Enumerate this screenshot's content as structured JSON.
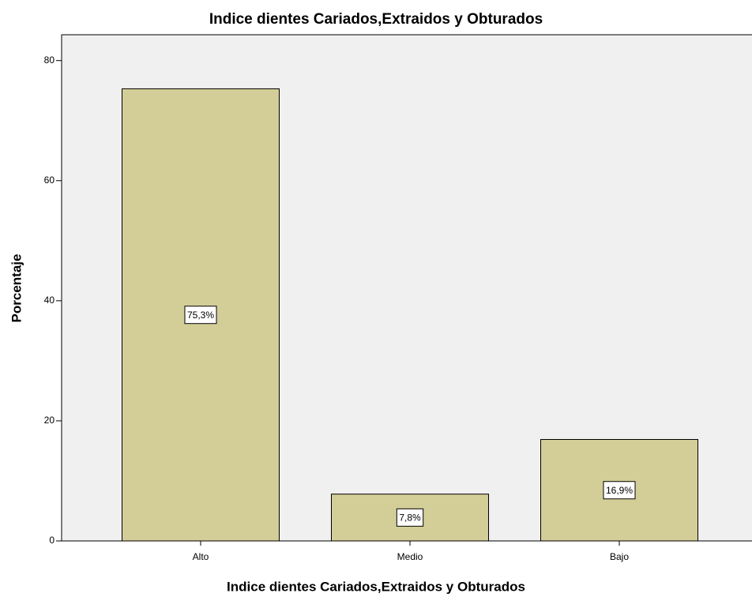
{
  "chart_data": {
    "type": "bar",
    "title": "Indice dientes Cariados,Extraidos y Obturados",
    "x_label": "Indice dientes Cariados,Extraidos y Obturados",
    "y_label": "Porcentaje",
    "categories": [
      "Alto",
      "Medio",
      "Bajo"
    ],
    "values": [
      75.3,
      7.8,
      16.9
    ],
    "value_labels": [
      "75,3%",
      "7,8%",
      "16,9%"
    ],
    "color": "#d3ce97",
    "ylim": [
      0,
      84.3
    ],
    "yticks": [
      0,
      20,
      40,
      60,
      80
    ],
    "grid": false
  }
}
